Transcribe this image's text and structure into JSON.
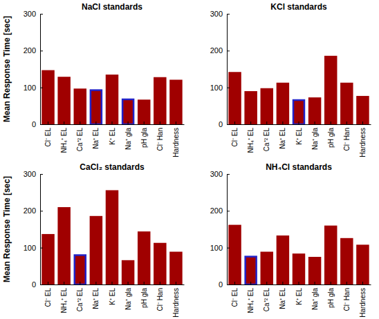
{
  "chart_data": [
    {
      "type": "bar",
      "title": "NaCl standards",
      "ylabel": "Mean Response Time [sec]",
      "categories": [
        "Cl⁻ EL",
        "NH₄⁺ EL",
        "Ca⁺² EL",
        "Na⁺ EL",
        "K⁺ EL",
        "Na⁺ gla",
        "pH gla",
        "Cl⁻ Han",
        "Hardness"
      ],
      "values": [
        147,
        129,
        97,
        95,
        135,
        70,
        67,
        128,
        121
      ],
      "color": "#a00000",
      "colors": [
        "#a00000",
        "#a00000",
        "#a00000",
        "#2222c8",
        "#a00000",
        "#2222c8",
        "#a00000",
        "#a00000",
        "#a00000"
      ],
      "ylim": [
        0,
        300
      ],
      "yticks": [
        0,
        100,
        200,
        300
      ],
      "grid": false
    },
    {
      "type": "bar",
      "title": "KCl standards",
      "categories": [
        "Cl⁻ EL",
        "NH₄⁺ EL",
        "Ca⁺² EL",
        "Na⁺ EL",
        "K⁺ EL",
        "Na⁺ gla",
        "pH gla",
        "Cl⁻ Han",
        "Hardness"
      ],
      "values": [
        142,
        90,
        98,
        113,
        68,
        73,
        186,
        113,
        77
      ],
      "color": "#a00000",
      "colors": [
        "#a00000",
        "#a00000",
        "#a00000",
        "#a00000",
        "#2222c8",
        "#a00000",
        "#a00000",
        "#a00000",
        "#a00000"
      ],
      "ylim": [
        0,
        300
      ],
      "yticks": [
        0,
        100,
        200,
        300
      ],
      "grid": false
    },
    {
      "type": "bar",
      "title": "CaCl₂ standards",
      "ylabel": "Mean Response Time [sec]",
      "categories": [
        "Cl⁻ EL",
        "NH₄⁺ EL",
        "Ca⁺² EL",
        "Na⁺ EL",
        "K⁺ EL",
        "Na⁺ gla",
        "pH gla",
        "Cl⁻ Han",
        "Hardness"
      ],
      "values": [
        137,
        210,
        82,
        186,
        256,
        66,
        144,
        113,
        89
      ],
      "color": "#a00000",
      "colors": [
        "#a00000",
        "#a00000",
        "#2222c8",
        "#a00000",
        "#a00000",
        "#a00000",
        "#a00000",
        "#a00000",
        "#a00000"
      ],
      "ylim": [
        0,
        300
      ],
      "yticks": [
        0,
        100,
        200,
        300
      ],
      "grid": false
    },
    {
      "type": "bar",
      "title": "NH₄Cl standards",
      "categories": [
        "Cl⁻ EL",
        "NH₄⁺ EL",
        "Ca⁺² EL",
        "Na⁺ EL",
        "K⁺ EL",
        "Na⁺ gla",
        "pH gla",
        "Cl⁻ Han",
        "Hardness"
      ],
      "values": [
        162,
        78,
        89,
        133,
        84,
        75,
        160,
        126,
        108
      ],
      "color": "#a00000",
      "colors": [
        "#a00000",
        "#2222c8",
        "#a00000",
        "#a00000",
        "#a00000",
        "#a00000",
        "#a00000",
        "#a00000",
        "#a00000"
      ],
      "ylim": [
        0,
        300
      ],
      "yticks": [
        0,
        100,
        200,
        300
      ],
      "grid": false
    }
  ]
}
